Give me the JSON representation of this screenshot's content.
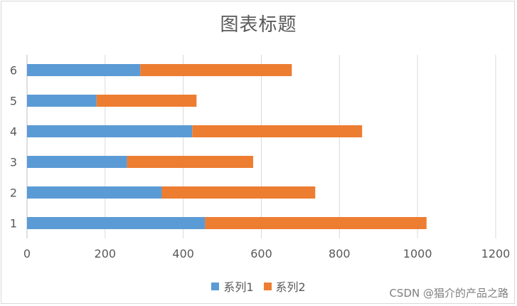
{
  "chart_data": {
    "type": "bar",
    "orientation": "horizontal",
    "stacked": true,
    "title": "图表标题",
    "categories": [
      "1",
      "2",
      "3",
      "4",
      "5",
      "6"
    ],
    "series": [
      {
        "name": "系列1",
        "color": "#5b9bd5",
        "values": [
          456,
          345,
          256,
          423,
          178,
          290
        ]
      },
      {
        "name": "系列2",
        "color": "#ed7d31",
        "values": [
          567,
          393,
          323,
          435,
          256,
          388
        ]
      }
    ],
    "xlim": [
      0,
      1200
    ],
    "xticks": [
      "0",
      "200",
      "400",
      "600",
      "800",
      "1000",
      "1200"
    ],
    "grid": true,
    "legend_position": "bottom"
  },
  "watermark": "CSDN @猖介的产品之路"
}
